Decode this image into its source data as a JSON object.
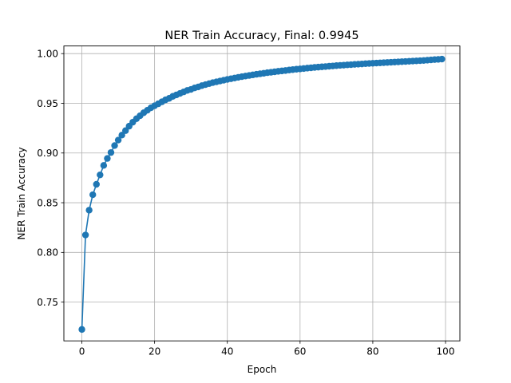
{
  "chart_data": {
    "type": "line",
    "title": "NER Train Accuracy, Final: 0.9945",
    "xlabel": "Epoch",
    "ylabel": "NER Train Accuracy",
    "xlim": [
      -4.95,
      103.95
    ],
    "ylim": [
      0.711,
      1.0077
    ],
    "xticks": [
      0,
      20,
      40,
      60,
      80,
      100
    ],
    "xtick_labels": [
      "0",
      "20",
      "40",
      "60",
      "80",
      "100"
    ],
    "yticks": [
      0.75,
      0.8,
      0.85,
      0.9,
      0.95,
      1.0
    ],
    "ytick_labels": [
      "0.75",
      "0.80",
      "0.85",
      "0.90",
      "0.95",
      "1.00"
    ],
    "grid": true,
    "marker": "circle",
    "series": [
      {
        "color": "#1f77b4",
        "x": [
          0,
          1,
          2,
          3,
          4,
          5,
          6,
          7,
          8,
          9,
          10,
          11,
          12,
          13,
          14,
          15,
          16,
          17,
          18,
          19,
          20,
          21,
          22,
          23,
          24,
          25,
          26,
          27,
          28,
          29,
          30,
          31,
          32,
          33,
          34,
          35,
          36,
          37,
          38,
          39,
          40,
          41,
          42,
          43,
          44,
          45,
          46,
          47,
          48,
          49,
          50,
          51,
          52,
          53,
          54,
          55,
          56,
          57,
          58,
          59,
          60,
          61,
          62,
          63,
          64,
          65,
          66,
          67,
          68,
          69,
          70,
          71,
          72,
          73,
          74,
          75,
          76,
          77,
          78,
          79,
          80,
          81,
          82,
          83,
          84,
          85,
          86,
          87,
          88,
          89,
          90,
          91,
          92,
          93,
          94,
          95,
          96,
          97,
          98,
          99
        ],
        "values": [
          0.7225,
          0.8175,
          0.8425,
          0.858,
          0.8685,
          0.878,
          0.8875,
          0.8945,
          0.9005,
          0.9075,
          0.913,
          0.918,
          0.9225,
          0.927,
          0.931,
          0.9345,
          0.9375,
          0.9405,
          0.943,
          0.9455,
          0.9475,
          0.9495,
          0.9515,
          0.9535,
          0.955,
          0.957,
          0.9585,
          0.96,
          0.9615,
          0.963,
          0.964,
          0.9655,
          0.9665,
          0.9678,
          0.9688,
          0.9698,
          0.9708,
          0.9716,
          0.9724,
          0.9732,
          0.974,
          0.9747,
          0.9754,
          0.9761,
          0.9768,
          0.9774,
          0.978,
          0.9786,
          0.9792,
          0.9797,
          0.9802,
          0.9808,
          0.9812,
          0.9817,
          0.9822,
          0.9826,
          0.983,
          0.9835,
          0.9839,
          0.9843,
          0.9846,
          0.985,
          0.9854,
          0.9857,
          0.9861,
          0.9864,
          0.9867,
          0.987,
          0.9873,
          0.9876,
          0.9879,
          0.9882,
          0.9884,
          0.9887,
          0.9889,
          0.9892,
          0.9894,
          0.9896,
          0.9899,
          0.9901,
          0.9903,
          0.9905,
          0.9907,
          0.9909,
          0.9911,
          0.9913,
          0.9915,
          0.9917,
          0.9919,
          0.9921,
          0.9923,
          0.9925,
          0.9927,
          0.9929,
          0.9931,
          0.9934,
          0.9937,
          0.994,
          0.9942,
          0.9945
        ]
      }
    ]
  }
}
